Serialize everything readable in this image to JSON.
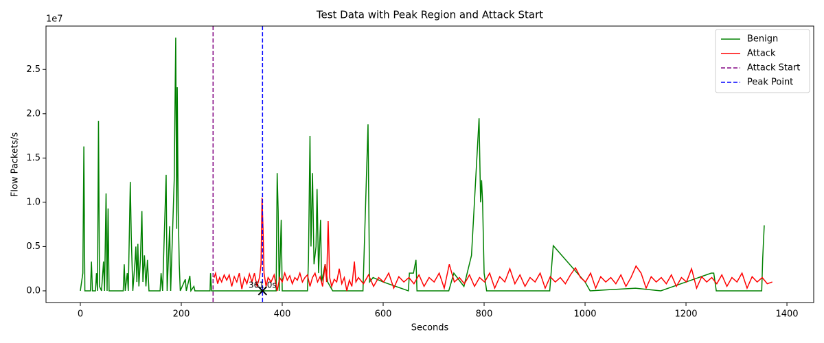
{
  "chart_data": {
    "type": "line",
    "title": "Test Data with Peak Region and Attack Start",
    "x_label": "Seconds",
    "y_label": "Flow Packets/s",
    "y_offset_label": "1e7",
    "xlim": [
      -68,
      1453
    ],
    "ylim": [
      -0.132,
      2.99
    ],
    "xticks": [
      0,
      200,
      400,
      600,
      800,
      1000,
      1200,
      1400
    ],
    "yticks": [
      {
        "value": 0,
        "label": "0.0"
      },
      0.5,
      {
        "value": 1,
        "label": "1.0"
      },
      1.5,
      {
        "value": 2,
        "label": "2.0"
      },
      2.5
    ],
    "legend": "upper right",
    "series": [
      {
        "name": "Benign",
        "color": "green",
        "x": [
          0,
          5,
          7,
          9,
          20,
          22,
          24,
          30,
          32,
          34,
          36,
          38,
          42,
          46,
          48,
          51,
          53,
          55,
          57,
          85,
          87,
          89,
          93,
          95,
          99,
          101,
          104,
          108,
          110,
          112,
          114,
          116,
          119,
          122,
          124,
          127,
          130,
          133,
          136,
          158,
          160,
          163,
          170,
          172,
          177,
          179,
          186,
          189,
          191,
          192,
          194,
          196,
          198,
          208,
          210,
          217,
          219,
          225,
          227,
          257,
          258,
          260,
          388,
          390,
          392,
          394,
          398,
          400,
          450,
          452,
          455,
          457,
          460,
          463,
          467,
          469,
          472,
          476,
          478,
          485,
          490,
          500,
          560,
          570,
          573,
          580,
          600,
          650,
          652,
          660,
          665,
          667,
          730,
          740,
          760,
          775,
          790,
          793,
          795,
          797,
          800,
          805,
          930,
          937,
          1000,
          1010,
          1100,
          1150,
          1250,
          1255,
          1260,
          1350,
          1352,
          1355
        ],
        "values": [
          0,
          0.2,
          1.63,
          0,
          0,
          0.33,
          0,
          0,
          0.2,
          0,
          1.92,
          0.05,
          0,
          0.33,
          0,
          1.1,
          0,
          0.93,
          0,
          0,
          0.3,
          0,
          0.2,
          0,
          1.23,
          0.6,
          0,
          0.3,
          0.5,
          0.1,
          0.53,
          0.05,
          0.35,
          0.9,
          0.1,
          0.4,
          0.05,
          0.35,
          0,
          0,
          0.2,
          0,
          1.31,
          0,
          0.73,
          0,
          1.25,
          2.86,
          0.7,
          2.3,
          0.9,
          0.3,
          0,
          0.13,
          0,
          0.17,
          0,
          0.05,
          0,
          0,
          0.2,
          0,
          0,
          1.33,
          0.9,
          0,
          0.8,
          0,
          0,
          0.35,
          1.75,
          0.5,
          1.33,
          0.3,
          0.5,
          1.15,
          0.2,
          0.8,
          0.1,
          0.3,
          0.1,
          0,
          0,
          1.88,
          0.1,
          0.15,
          0.1,
          0,
          0.2,
          0.2,
          0.35,
          0,
          0,
          0.2,
          0.05,
          0.4,
          1.95,
          1.0,
          1.25,
          1.0,
          0.2,
          0,
          0,
          0.51,
          0.1,
          0,
          0.03,
          0,
          0.2,
          0.2,
          0,
          0,
          0.37,
          0.74
        ]
      },
      {
        "name": "Attack",
        "color": "red",
        "x": [
          265,
          268,
          272,
          276,
          280,
          285,
          290,
          295,
          300,
          305,
          310,
          315,
          320,
          325,
          330,
          335,
          340,
          345,
          350,
          355,
          358,
          360,
          362,
          364,
          368,
          372,
          378,
          384,
          390,
          395,
          400,
          405,
          410,
          415,
          420,
          425,
          430,
          435,
          440,
          445,
          450,
          455,
          460,
          465,
          470,
          475,
          480,
          485,
          488,
          491,
          494,
          498,
          503,
          508,
          513,
          518,
          523,
          528,
          533,
          538,
          543,
          546,
          551,
          561,
          571,
          581,
          591,
          601,
          611,
          621,
          631,
          641,
          651,
          661,
          671,
          681,
          691,
          701,
          711,
          721,
          731,
          741,
          751,
          761,
          771,
          781,
          791,
          801,
          811,
          821,
          831,
          841,
          851,
          861,
          871,
          881,
          891,
          901,
          911,
          921,
          931,
          941,
          951,
          961,
          971,
          981,
          991,
          1001,
          1011,
          1021,
          1031,
          1041,
          1051,
          1061,
          1071,
          1081,
          1091,
          1101,
          1111,
          1121,
          1131,
          1141,
          1151,
          1161,
          1171,
          1181,
          1191,
          1201,
          1211,
          1221,
          1231,
          1241,
          1251,
          1261,
          1271,
          1281,
          1291,
          1301,
          1311,
          1321,
          1331,
          1341,
          1351,
          1361,
          1371
        ],
        "values": [
          0.15,
          0.2,
          0.08,
          0.15,
          0.1,
          0.18,
          0.12,
          0.18,
          0.05,
          0.16,
          0.1,
          0.2,
          0.02,
          0.15,
          0.08,
          0.19,
          0.1,
          0.2,
          0.05,
          0.15,
          0.3,
          1.05,
          0.7,
          0.2,
          0.05,
          0.15,
          0.1,
          0.18,
          0.0,
          0.15,
          0.1,
          0.2,
          0.12,
          0.17,
          0.08,
          0.15,
          0.12,
          0.2,
          0.1,
          0.15,
          0.18,
          0.05,
          0.15,
          0.2,
          0.1,
          0.16,
          0.05,
          0.3,
          0.1,
          0.79,
          0.15,
          0.05,
          0.13,
          0.1,
          0.25,
          0.08,
          0.15,
          0.0,
          0.12,
          0.05,
          0.33,
          0.1,
          0.15,
          0.08,
          0.18,
          0.05,
          0.15,
          0.1,
          0.2,
          0.03,
          0.16,
          0.1,
          0.15,
          0.08,
          0.18,
          0.05,
          0.15,
          0.1,
          0.2,
          0.03,
          0.3,
          0.1,
          0.15,
          0.08,
          0.18,
          0.05,
          0.15,
          0.1,
          0.2,
          0.03,
          0.16,
          0.1,
          0.25,
          0.08,
          0.18,
          0.05,
          0.15,
          0.1,
          0.2,
          0.03,
          0.16,
          0.1,
          0.15,
          0.08,
          0.18,
          0.26,
          0.15,
          0.1,
          0.2,
          0.03,
          0.16,
          0.1,
          0.15,
          0.08,
          0.18,
          0.05,
          0.15,
          0.28,
          0.2,
          0.03,
          0.16,
          0.1,
          0.15,
          0.08,
          0.18,
          0.05,
          0.15,
          0.1,
          0.25,
          0.03,
          0.16,
          0.1,
          0.15,
          0.08,
          0.18,
          0.05,
          0.15,
          0.1,
          0.2,
          0.03,
          0.16,
          0.1,
          0.15,
          0.08,
          0.1
        ]
      }
    ],
    "vlines": [
      {
        "name": "Attack Start",
        "x": 263,
        "color": "purple"
      },
      {
        "name": "Peak Point",
        "x": 361,
        "color": "blue"
      }
    ],
    "peak_marker": {
      "x": 361,
      "y": 0,
      "label": "361.0s"
    }
  }
}
